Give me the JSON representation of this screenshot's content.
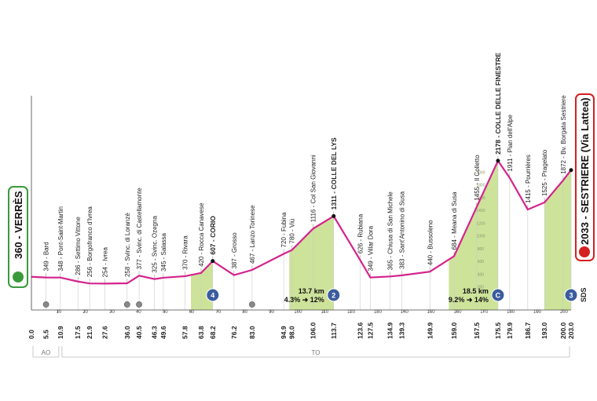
{
  "chart_data": {
    "type": "line",
    "start": "360 - VERRÈS",
    "finish": "2033 - SESTRIERE (Via Lattea)",
    "x": [
      0.0,
      5.5,
      10.9,
      17.5,
      21.9,
      27.6,
      36.0,
      40.5,
      46.3,
      49.6,
      57.8,
      63.8,
      68.2,
      76.2,
      83.0,
      94.9,
      98.0,
      106.0,
      113.7,
      123.6,
      127.5,
      134.9,
      139.3,
      149.9,
      159.0,
      167.5,
      175.5,
      179.9,
      186.7,
      193.0,
      200.0,
      203.0
    ],
    "x_labels": [
      "0.0",
      "5.5",
      "10.9",
      "17.5",
      "21.9",
      "27.6",
      "36.0",
      "40.5",
      "46.3",
      "49.6",
      "57.8",
      "63.8",
      "68.2",
      "76.2",
      "83.0",
      "94.9",
      "98.0",
      "106.0",
      "113.7",
      "123.6",
      "127.5",
      "134.9",
      "139.3",
      "149.9",
      "159.0",
      "167.5",
      "175.5",
      "179.9",
      "186.7",
      "193.0",
      "200.0",
      "203.0"
    ],
    "series": [
      {
        "name": "Altitude",
        "color": "#d4238c",
        "values": [
          360,
          349,
          348,
          286,
          256,
          254,
          258,
          377,
          325,
          345,
          370,
          420,
          607,
          387,
          467,
          720,
          780,
          1116,
          1311,
          626,
          349,
          365,
          383,
          440,
          684,
          1455,
          2178,
          1911,
          1415,
          1525,
          1872,
          2033
        ]
      }
    ],
    "waypoints": [
      null,
      "349 - Bard",
      "348 - Pont-Saint-Martin",
      "286 - Settimo Vittone",
      "256 - Borgofranco d'Ivrea",
      "254 - Ivrea",
      "258 - Svinc. di Loranzè",
      "377 - Svinc. di Castellamonte",
      "325 - Svinc. Ozegna",
      "345 - Salassa",
      "370 - Rivara",
      "420 - Rocca Canavese",
      "607 - CORIO",
      "387 - Grosso",
      "467 - Lanzo Torinese",
      "720 - Fubina",
      "780 - Viù",
      "1116 - Col San Giovanni",
      "1311 - COLLE DEL LYS",
      "626 - Rubiana",
      "349 - Villar Dora",
      "365 - Chiusa di San Michele",
      "383 - Sant'Antonino di Susa",
      "440 - Bussoleno",
      "684 - Meana di Susa",
      "1455 - Il Colletto",
      "2178 - COLLE DELLE FINESTRE",
      "1911 - Pian dell'Alpe",
      "1415 - Pourrières",
      "1525 - Pragelato",
      "1872 - Bv. Borgata Sestriere",
      null
    ],
    "bold_waypoints": [
      12,
      18,
      26
    ],
    "xlim": [
      0,
      203
    ],
    "xticks": [
      10,
      20,
      30,
      40,
      50,
      60,
      70,
      80,
      90,
      100,
      110,
      120,
      130,
      140,
      150,
      160,
      170,
      180,
      190,
      200
    ],
    "ylim": [
      0,
      2300
    ],
    "yticks": [
      200,
      400,
      600,
      800,
      1000,
      1200,
      1400,
      1600,
      1800,
      2000
    ],
    "climbs": [
      {
        "start": 60,
        "end": 68.2
      },
      {
        "start": 97,
        "end": 113.7
      },
      {
        "start": 157,
        "end": 175.5
      },
      {
        "start": 193,
        "end": 203.0
      }
    ],
    "climb_color": "#cde39a",
    "climb_info": [
      {
        "x": 113.7,
        "length": "13.7 km",
        "gradient": "4.3% ➜ 12%"
      },
      {
        "x": 175.5,
        "length": "18.5 km",
        "gradient": "9.2% ➜ 14%"
      }
    ],
    "kom": [
      {
        "x": 68.2,
        "label": "4"
      },
      {
        "x": 113.7,
        "label": "2"
      },
      {
        "x": 175.5,
        "label": "C"
      },
      {
        "x": 203.0,
        "label": "3"
      }
    ],
    "sprints": [
      5.5,
      36.0,
      40.5,
      83.0
    ],
    "regions": [
      {
        "label": "AO",
        "start": 0,
        "end": 10.9
      },
      {
        "label": "TO",
        "start": 10.9,
        "end": 203.0
      }
    ],
    "brand": "SDS"
  }
}
